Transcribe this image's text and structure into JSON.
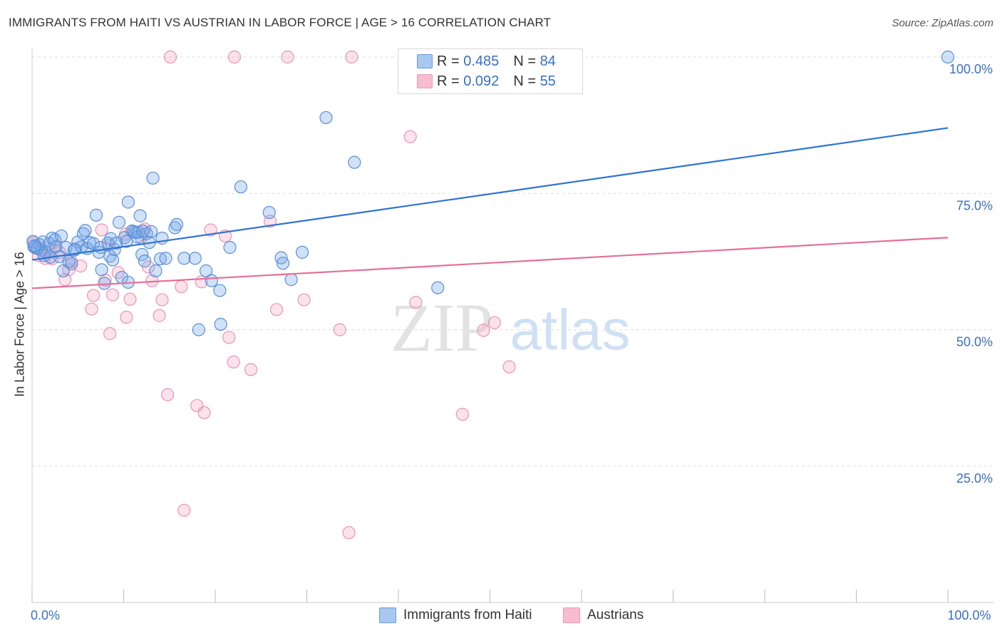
{
  "title": "IMMIGRANTS FROM HAITI VS AUSTRIAN IN LABOR FORCE | AGE > 16 CORRELATION CHART",
  "source": "Source: ZipAtlas.com",
  "watermark": {
    "left": "ZIP",
    "right": "atlas"
  },
  "legend_top": {
    "rows": [
      {
        "r_label": "R =",
        "r_value": "0.485",
        "n_label": "N =",
        "n_value": "84",
        "color": "#a9c8f0"
      },
      {
        "r_label": "R =",
        "r_value": "0.092",
        "n_label": "N =",
        "n_value": "55",
        "color": "#f7bcd0"
      }
    ]
  },
  "legend_bottom": [
    {
      "label": "Immigrants from Haiti",
      "color": "#a9c8f0"
    },
    {
      "label": "Austrians",
      "color": "#f7bcd0"
    }
  ],
  "colors": {
    "blue_fill": "rgba(120,170,235,0.35)",
    "blue_stroke": "#5b8fd6",
    "blue_line": "#2f74d0",
    "pink_fill": "rgba(245,160,190,0.30)",
    "pink_stroke": "#e895b3",
    "pink_line": "#e4709a",
    "axis_text": "#3b6fc4"
  },
  "chart_data": {
    "type": "scatter",
    "title": "IMMIGRANTS FROM HAITI VS AUSTRIAN IN LABOR FORCE | AGE > 16 CORRELATION CHART",
    "xlabel": "",
    "ylabel": "In Labor Force | Age > 16",
    "xlim": [
      0,
      100
    ],
    "ylim": [
      0,
      100
    ],
    "x_ticks": [
      {
        "value": 0,
        "label": "0.0%"
      },
      {
        "value": 100,
        "label": "100.0%"
      }
    ],
    "y_ticks": [
      {
        "value": 100,
        "label": "100.0%"
      },
      {
        "value": 75,
        "label": "75.0%"
      },
      {
        "value": 50,
        "label": "50.0%"
      },
      {
        "value": 25,
        "label": "25.0%"
      }
    ],
    "grid": true,
    "legend_position": "top-center",
    "series": [
      {
        "name": "Immigrants from Haiti",
        "trend": {
          "x": [
            0,
            100
          ],
          "y": [
            62.8,
            87.0
          ]
        },
        "points": [
          [
            0.1,
            66.2
          ],
          [
            0.4,
            65.0
          ],
          [
            0.8,
            65.6
          ],
          [
            1.0,
            64.6
          ],
          [
            1.2,
            66.1
          ],
          [
            1.5,
            64.2
          ],
          [
            1.9,
            65.8
          ],
          [
            2.2,
            66.8
          ],
          [
            2.5,
            66.5
          ],
          [
            2.6,
            65.2
          ],
          [
            3.0,
            63.4
          ],
          [
            3.2,
            67.2
          ],
          [
            3.4,
            60.8
          ],
          [
            3.7,
            65.1
          ],
          [
            4.0,
            62.5
          ],
          [
            4.3,
            62.1
          ],
          [
            4.7,
            64.8
          ],
          [
            5.0,
            66.1
          ],
          [
            5.4,
            65.2
          ],
          [
            5.6,
            67.6
          ],
          [
            5.8,
            68.2
          ],
          [
            6.0,
            64.9
          ],
          [
            6.3,
            66.0
          ],
          [
            6.7,
            65.8
          ],
          [
            7.0,
            71.0
          ],
          [
            7.3,
            64.2
          ],
          [
            7.5,
            65.1
          ],
          [
            7.6,
            61.0
          ],
          [
            7.9,
            58.5
          ],
          [
            8.3,
            65.9
          ],
          [
            8.5,
            63.5
          ],
          [
            8.6,
            66.7
          ],
          [
            8.8,
            62.8
          ],
          [
            9.0,
            64.7
          ],
          [
            9.5,
            69.7
          ],
          [
            9.8,
            59.6
          ],
          [
            10.1,
            66.9
          ],
          [
            10.3,
            66.2
          ],
          [
            10.5,
            58.7
          ],
          [
            10.5,
            73.4
          ],
          [
            10.9,
            68.1
          ],
          [
            11.1,
            68.0
          ],
          [
            11.3,
            67.8
          ],
          [
            11.5,
            67.0
          ],
          [
            11.6,
            67.9
          ],
          [
            11.8,
            70.9
          ],
          [
            12.0,
            63.8
          ],
          [
            12.3,
            62.6
          ],
          [
            12.5,
            67.6
          ],
          [
            12.8,
            66.0
          ],
          [
            13.0,
            68.0
          ],
          [
            13.2,
            77.8
          ],
          [
            13.5,
            60.8
          ],
          [
            14.0,
            63.0
          ],
          [
            14.2,
            66.8
          ],
          [
            14.6,
            63.1
          ],
          [
            15.6,
            68.7
          ],
          [
            15.8,
            69.3
          ],
          [
            16.6,
            63.1
          ],
          [
            17.8,
            63.1
          ],
          [
            18.2,
            50.0
          ],
          [
            19.0,
            60.8
          ],
          [
            19.6,
            59.0
          ],
          [
            20.5,
            57.2
          ],
          [
            20.6,
            51.0
          ],
          [
            21.6,
            65.1
          ],
          [
            22.8,
            76.2
          ],
          [
            25.9,
            71.5
          ],
          [
            27.2,
            63.2
          ],
          [
            27.4,
            62.2
          ],
          [
            28.3,
            59.2
          ],
          [
            29.5,
            64.2
          ],
          [
            32.1,
            88.9
          ],
          [
            35.2,
            80.7
          ],
          [
            44.3,
            57.7
          ],
          [
            0.2,
            65.2
          ],
          [
            0.6,
            64.9
          ],
          [
            1.3,
            63.6
          ],
          [
            2.0,
            63.3
          ],
          [
            4.6,
            64.6
          ],
          [
            9.2,
            65.9
          ],
          [
            12.1,
            68.1
          ],
          [
            100.0,
            100.0
          ],
          [
            0.3,
            65.4
          ]
        ]
      },
      {
        "name": "Austrians",
        "trend": {
          "x": [
            0,
            100
          ],
          "y": [
            57.6,
            66.9
          ]
        },
        "points": [
          [
            0.2,
            66.0
          ],
          [
            0.7,
            63.6
          ],
          [
            1.0,
            65.0
          ],
          [
            1.4,
            63.1
          ],
          [
            1.8,
            64.3
          ],
          [
            2.2,
            63.0
          ],
          [
            2.6,
            65.2
          ],
          [
            3.0,
            64.2
          ],
          [
            3.6,
            59.2
          ],
          [
            4.0,
            61.0
          ],
          [
            4.3,
            62.5
          ],
          [
            5.3,
            61.7
          ],
          [
            6.5,
            53.8
          ],
          [
            6.7,
            56.3
          ],
          [
            7.6,
            68.3
          ],
          [
            8.0,
            59.1
          ],
          [
            8.4,
            65.5
          ],
          [
            8.5,
            49.3
          ],
          [
            8.8,
            56.4
          ],
          [
            9.4,
            60.5
          ],
          [
            10.2,
            67.5
          ],
          [
            10.3,
            52.3
          ],
          [
            10.7,
            55.6
          ],
          [
            11.9,
            66.9
          ],
          [
            12.3,
            68.5
          ],
          [
            12.7,
            61.5
          ],
          [
            13.1,
            59.0
          ],
          [
            13.9,
            52.6
          ],
          [
            14.2,
            55.5
          ],
          [
            14.8,
            38.1
          ],
          [
            15.1,
            100.0
          ],
          [
            16.3,
            57.9
          ],
          [
            16.6,
            16.9
          ],
          [
            18.0,
            36.1
          ],
          [
            18.5,
            58.8
          ],
          [
            18.8,
            34.8
          ],
          [
            19.5,
            68.3
          ],
          [
            21.1,
            67.2
          ],
          [
            21.5,
            48.6
          ],
          [
            22.0,
            44.1
          ],
          [
            22.1,
            100.0
          ],
          [
            23.9,
            42.7
          ],
          [
            26.0,
            69.9
          ],
          [
            26.7,
            53.7
          ],
          [
            27.9,
            100.0
          ],
          [
            29.7,
            55.5
          ],
          [
            33.6,
            50.0
          ],
          [
            34.6,
            12.8
          ],
          [
            34.9,
            100.0
          ],
          [
            41.3,
            85.4
          ],
          [
            41.9,
            55.0
          ],
          [
            47.0,
            34.5
          ],
          [
            49.3,
            49.9
          ],
          [
            50.5,
            51.3
          ],
          [
            52.1,
            43.2
          ]
        ]
      }
    ]
  }
}
